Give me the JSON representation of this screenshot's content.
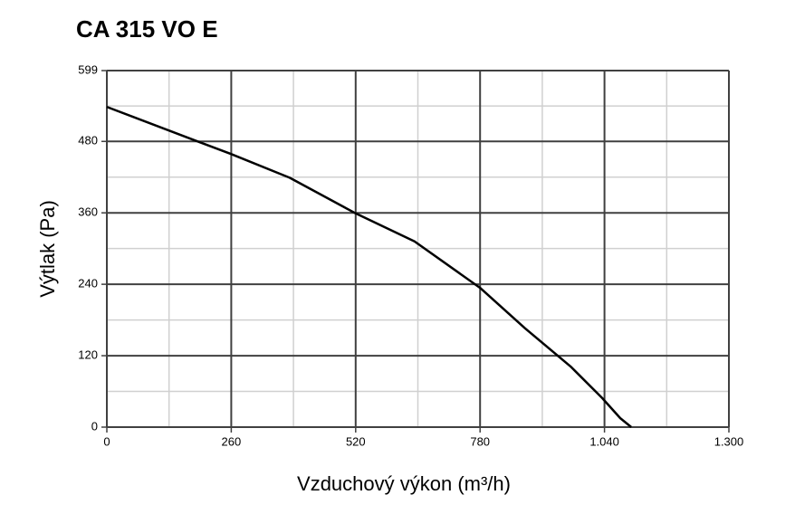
{
  "chart_data": {
    "type": "line",
    "title": "CA 315 VO E",
    "xlabel": "Vzduchový výkon (m³/h)",
    "ylabel": "Výtlak (Pa)",
    "x": [
      0,
      193,
      259,
      382,
      518,
      643,
      780,
      874,
      969,
      1035,
      1073,
      1096
    ],
    "series": [
      {
        "name": "CA 315 VO E",
        "color": "#000000",
        "values": [
          538,
          479,
          459,
          419,
          360,
          312,
          234,
          166,
          102,
          49,
          15,
          0
        ]
      }
    ],
    "xlim": [
      0,
      1300
    ],
    "ylim": [
      0,
      599
    ],
    "xticks": [
      0,
      260,
      520,
      780,
      {
        "value": 1040,
        "label": "1.040"
      },
      {
        "value": 1300,
        "label": "1.300"
      }
    ],
    "yticks": [
      0,
      120,
      240,
      360,
      480,
      599
    ],
    "grid": true
  }
}
